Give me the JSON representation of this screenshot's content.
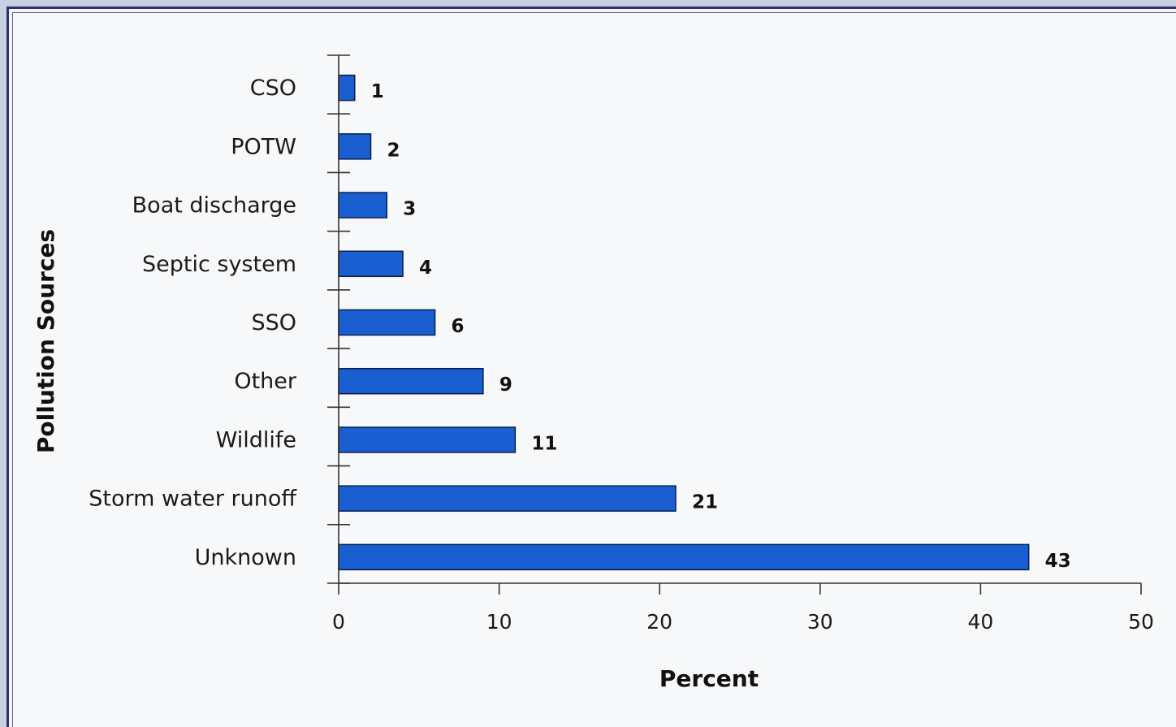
{
  "chart_data": {
    "type": "bar",
    "orientation": "horizontal",
    "categories": [
      "CSO",
      "POTW",
      "Boat discharge",
      "Septic system",
      "SSO",
      "Other",
      "Wildlife",
      "Storm water runoff",
      "Unknown"
    ],
    "values": [
      1,
      2,
      3,
      4,
      6,
      9,
      11,
      21,
      43
    ],
    "data_labels": [
      "1",
      "2",
      "3",
      "4",
      "6",
      "9",
      "11",
      "21",
      "43"
    ],
    "xlabel": "Percent",
    "ylabel": "Pollution Sources",
    "xlim": [
      0,
      50
    ],
    "xticks": [
      0,
      10,
      20,
      30,
      40,
      50
    ],
    "xtick_labels": [
      "0",
      "10",
      "20",
      "30",
      "40",
      "50"
    ],
    "bar_color": "#1a5fd1",
    "grid": false,
    "legend": "none"
  }
}
